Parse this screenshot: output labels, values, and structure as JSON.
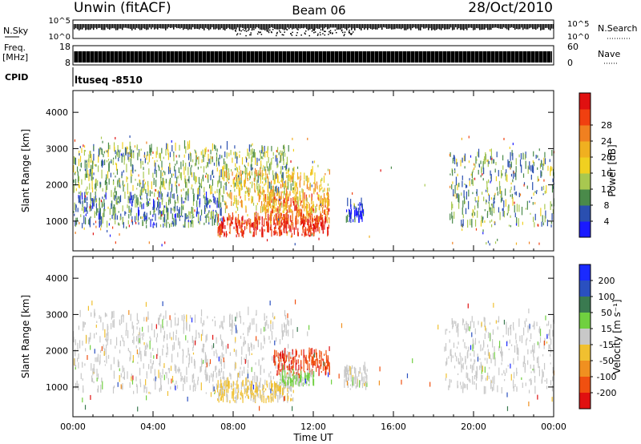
{
  "header": {
    "title": "Unwin (fitACF)",
    "beam": "Beam 06",
    "date": "28/Oct/2010"
  },
  "status_panels": {
    "nsky": {
      "label": "N.Sky",
      "ticks": [
        "10^5",
        "10^0"
      ]
    },
    "nsearch": {
      "label": "N.Search",
      "ticks": [
        "10^5",
        "10^0"
      ]
    },
    "freq": {
      "label_line1": "Freq.",
      "label_line2": "[MHz]",
      "ticks": [
        "18",
        "8"
      ]
    },
    "nave": {
      "label": "Nave",
      "ticks": [
        "60",
        "0"
      ]
    },
    "cpid": {
      "label": "CPID",
      "value": "ltuseq  -8510"
    }
  },
  "chart_data": [
    {
      "type": "heatmap",
      "name": "power",
      "ylabel": "Slant Range [km]",
      "yticks": [
        1000,
        2000,
        3000,
        4000
      ],
      "ylim": [
        180,
        4600
      ],
      "xlim": [
        0,
        24
      ],
      "colorbar": {
        "label": "Power [dB]",
        "ticks": [
          "4",
          "8",
          "12",
          "16",
          "20",
          "24",
          "28"
        ],
        "colors": [
          "#1a1aff",
          "#2a4fb0",
          "#4a8a4a",
          "#a8c850",
          "#f0d020",
          "#f0b020",
          "#f08020",
          "#f04010",
          "#e01010"
        ]
      },
      "regions": [
        {
          "t": [
            0.0,
            7.5
          ],
          "r": [
            800,
            1700
          ],
          "level": 0.25
        },
        {
          "t": [
            0.0,
            11.0
          ],
          "r": [
            1700,
            3000
          ],
          "level": 0.35
        },
        {
          "t": [
            7.2,
            12.8
          ],
          "r": [
            550,
            1050
          ],
          "level": 0.9
        },
        {
          "t": [
            9.5,
            12.8
          ],
          "r": [
            900,
            1600
          ],
          "level": 0.75
        },
        {
          "t": [
            7.5,
            12.8
          ],
          "r": [
            1200,
            2300
          ],
          "level": 0.55
        },
        {
          "t": [
            13.6,
            14.5
          ],
          "r": [
            950,
            1450
          ],
          "level": 0.08
        },
        {
          "t": [
            18.8,
            24.0
          ],
          "r": [
            800,
            2800
          ],
          "level": 0.3
        }
      ]
    },
    {
      "type": "heatmap",
      "name": "velocity",
      "ylabel": "Slant Range [km]",
      "yticks": [
        1000,
        2000,
        3000,
        4000
      ],
      "ylim": [
        180,
        4600
      ],
      "xlim": [
        0,
        24
      ],
      "xticks": [
        "00:00",
        "04:00",
        "08:00",
        "12:00",
        "16:00",
        "20:00",
        "00:00"
      ],
      "xlabel": "Time UT",
      "colorbar": {
        "label": "Velocity [m s⁻¹]",
        "ticks": [
          "200",
          "100",
          "50",
          "15",
          "-15",
          "-50",
          "-100",
          "-200"
        ],
        "colors": [
          "#1a2aff",
          "#2a50c0",
          "#3a7a50",
          "#70d040",
          "#c8c8c8",
          "#f0c030",
          "#f09020",
          "#f05010",
          "#e01010"
        ]
      },
      "regions": [
        {
          "t": [
            0.0,
            11.0
          ],
          "r": [
            800,
            3000
          ],
          "v": 0.0
        },
        {
          "t": [
            7.2,
            11.0
          ],
          "r": [
            550,
            1050
          ],
          "v": -40
        },
        {
          "t": [
            10.0,
            12.8
          ],
          "r": [
            1300,
            1900
          ],
          "v": -180
        },
        {
          "t": [
            10.3,
            12.0
          ],
          "r": [
            1000,
            1300
          ],
          "v": 40
        },
        {
          "t": [
            13.5,
            14.8
          ],
          "r": [
            900,
            1500
          ],
          "v": 0.0
        },
        {
          "t": [
            18.5,
            24.0
          ],
          "r": [
            800,
            2800
          ],
          "v": 0.0
        }
      ]
    }
  ]
}
